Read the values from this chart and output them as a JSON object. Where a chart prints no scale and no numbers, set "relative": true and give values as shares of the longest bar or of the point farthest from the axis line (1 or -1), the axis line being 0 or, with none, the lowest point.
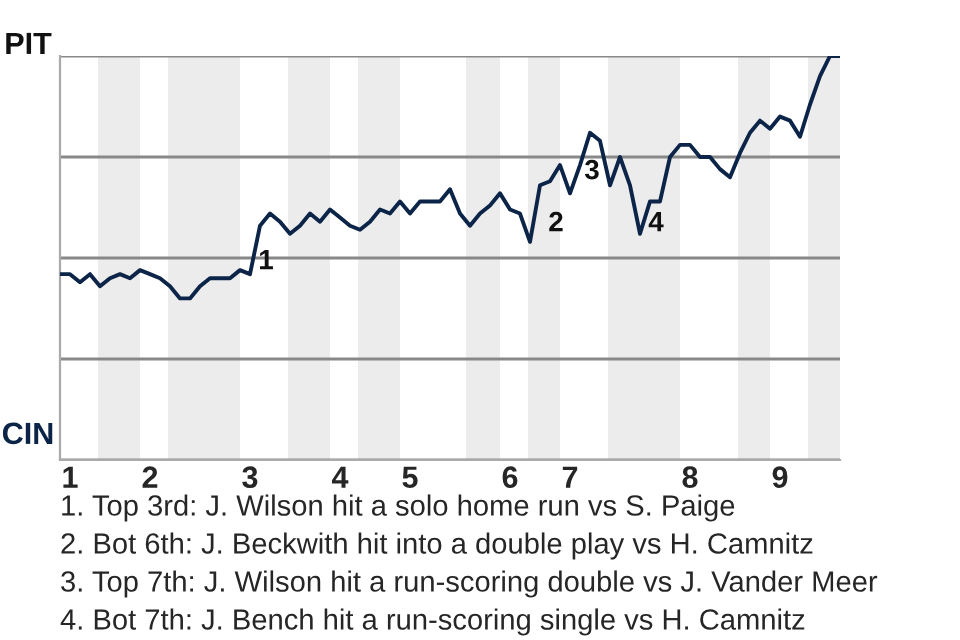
{
  "chart_data": {
    "type": "line",
    "relative": true,
    "categories": [
      null,
      "1",
      null,
      null,
      null,
      null,
      null,
      null,
      null,
      "2",
      null,
      null,
      null,
      null,
      null,
      null,
      null,
      null,
      null,
      "3",
      null,
      null,
      null,
      null,
      null,
      null,
      null,
      null,
      "4",
      null,
      null,
      null,
      null,
      null,
      null,
      "5",
      null,
      null,
      null,
      null,
      null,
      null,
      null,
      null,
      null,
      "6",
      null,
      null,
      null,
      null,
      null,
      "7",
      null,
      null,
      null,
      null,
      null,
      null,
      null,
      null,
      null,
      null,
      null,
      "8",
      null,
      null,
      null,
      null,
      null,
      null,
      null,
      null,
      "9",
      null,
      null,
      null,
      null,
      null,
      null
    ],
    "series": [
      {
        "color": "#0b2447",
        "values": [
          0.46,
          0.46,
          0.44,
          0.46,
          0.43,
          0.45,
          0.46,
          0.45,
          0.47,
          0.46,
          0.45,
          0.43,
          0.4,
          0.4,
          0.43,
          0.45,
          0.45,
          0.45,
          0.47,
          0.46,
          0.58,
          0.61,
          0.59,
          0.56,
          0.58,
          0.61,
          0.59,
          0.62,
          0.6,
          0.58,
          0.57,
          0.59,
          0.62,
          0.61,
          0.64,
          0.61,
          0.64,
          0.64,
          0.64,
          0.67,
          0.61,
          0.58,
          0.61,
          0.63,
          0.66,
          0.62,
          0.61,
          0.54,
          0.68,
          0.69,
          0.73,
          0.66,
          0.73,
          0.81,
          0.79,
          0.68,
          0.75,
          0.68,
          0.56,
          0.64,
          0.64,
          0.75,
          0.78,
          0.78,
          0.75,
          0.75,
          0.72,
          0.7,
          0.76,
          0.81,
          0.84,
          0.82,
          0.85,
          0.84,
          0.8,
          0.88,
          0.95,
          1.0,
          1.0
        ]
      }
    ],
    "grid": "y",
    "annotations": [
      "PIT",
      "CIN",
      "1",
      "2",
      "3",
      "4",
      "1. Top 3rd: J. Wilson hit a solo home run vs S. Paige",
      "2. Bot 6th: J. Beckwith hit into a double play vs H. Camnitz",
      "3. Top 7th: J. Wilson hit a run-scoring double vs J. Vander Meer",
      "4. Bot 7th: J. Bench hit a run-scoring single vs H. Camnitz"
    ]
  }
}
